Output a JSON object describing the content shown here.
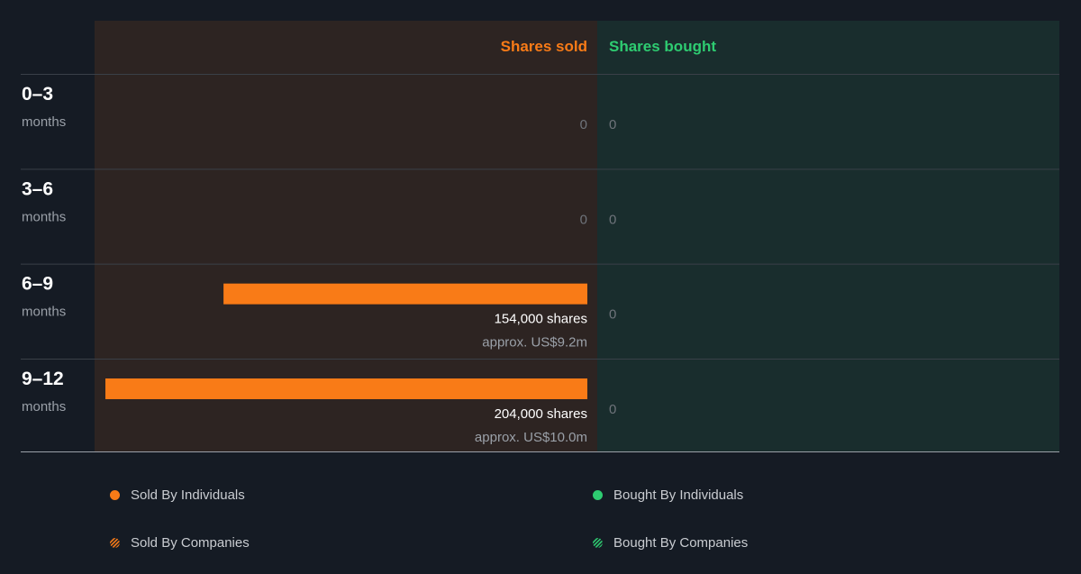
{
  "colors": {
    "sold": "#f97b17",
    "bought": "#2ecc71",
    "sold_panel": "#2d2422",
    "bought_panel": "#192d2d",
    "background": "#151b24"
  },
  "chart_data": {
    "type": "bar",
    "orientation": "horizontal",
    "headers": {
      "sold": "Shares sold",
      "bought": "Shares bought"
    },
    "categories": [
      {
        "range": "0–3",
        "unit": "months"
      },
      {
        "range": "3–6",
        "unit": "months"
      },
      {
        "range": "6–9",
        "unit": "months"
      },
      {
        "range": "9–12",
        "unit": "months"
      }
    ],
    "series": [
      {
        "name": "Sold By Individuals",
        "values": [
          0,
          0,
          154000,
          204000
        ],
        "labels": [
          "0",
          "0",
          "154,000 shares",
          "204,000 shares"
        ],
        "approx": [
          "",
          "",
          "approx. US$9.2m",
          "approx. US$10.0m"
        ]
      },
      {
        "name": "Bought By Individuals",
        "values": [
          0,
          0,
          0,
          0
        ],
        "labels": [
          "0",
          "0",
          "0",
          "0"
        ]
      }
    ],
    "xlim_sold": [
      0,
      208000
    ],
    "legend": {
      "placement": "bottom",
      "entries": [
        {
          "label": "Sold By Individuals",
          "icon": "orange-dot-icon"
        },
        {
          "label": "Bought By Individuals",
          "icon": "green-dot-icon"
        },
        {
          "label": "Sold By Companies",
          "icon": "orange-hatched-icon"
        },
        {
          "label": "Bought By Companies",
          "icon": "green-hatched-icon"
        }
      ]
    }
  }
}
